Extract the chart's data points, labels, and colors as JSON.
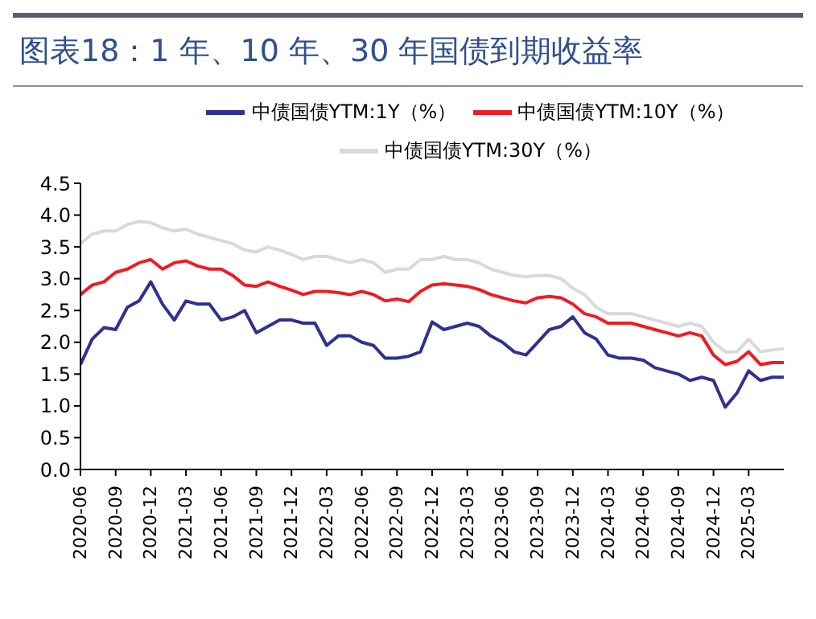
{
  "chart_data": {
    "type": "line",
    "title": "图表18：1 年、10 年、30 年国债到期收益率",
    "x": [
      "2020-06",
      "2020-07",
      "2020-08",
      "2020-09",
      "2020-10",
      "2020-11",
      "2020-12",
      "2021-01",
      "2021-02",
      "2021-03",
      "2021-04",
      "2021-05",
      "2021-06",
      "2021-07",
      "2021-08",
      "2021-09",
      "2021-10",
      "2021-11",
      "2021-12",
      "2022-01",
      "2022-02",
      "2022-03",
      "2022-04",
      "2022-05",
      "2022-06",
      "2022-07",
      "2022-08",
      "2022-09",
      "2022-10",
      "2022-11",
      "2022-12",
      "2023-01",
      "2023-02",
      "2023-03",
      "2023-04",
      "2023-05",
      "2023-06",
      "2023-07",
      "2023-08",
      "2023-09",
      "2023-10",
      "2023-11",
      "2023-12",
      "2024-01",
      "2024-02",
      "2024-03",
      "2024-04",
      "2024-05",
      "2024-06",
      "2024-07",
      "2024-08",
      "2024-09",
      "2024-10",
      "2024-11",
      "2024-12",
      "2025-01",
      "2025-02",
      "2025-03",
      "2025-04",
      "2025-05",
      "2025-06"
    ],
    "series": [
      {
        "name": "中债国债YTM:1Y（%）",
        "color": "#2e3192",
        "values": [
          1.65,
          2.05,
          2.23,
          2.2,
          2.55,
          2.65,
          2.95,
          2.6,
          2.35,
          2.65,
          2.6,
          2.6,
          2.35,
          2.4,
          2.5,
          2.15,
          2.25,
          2.35,
          2.35,
          2.3,
          2.3,
          1.95,
          2.1,
          2.1,
          2.0,
          1.95,
          1.75,
          1.75,
          1.78,
          1.85,
          2.32,
          2.2,
          2.25,
          2.3,
          2.25,
          2.1,
          2.0,
          1.85,
          1.8,
          2.0,
          2.2,
          2.25,
          2.4,
          2.15,
          2.05,
          1.8,
          1.75,
          1.75,
          1.72,
          1.6,
          1.55,
          1.5,
          1.4,
          1.45,
          1.4,
          0.98,
          1.2,
          1.55,
          1.4,
          1.45,
          1.45
        ]
      },
      {
        "name": "中债国债YTM:10Y（%）",
        "color": "#ee1c25",
        "values": [
          2.75,
          2.9,
          2.95,
          3.1,
          3.15,
          3.25,
          3.3,
          3.15,
          3.25,
          3.28,
          3.2,
          3.15,
          3.15,
          3.05,
          2.9,
          2.88,
          2.95,
          2.88,
          2.82,
          2.75,
          2.8,
          2.8,
          2.78,
          2.75,
          2.8,
          2.75,
          2.65,
          2.68,
          2.64,
          2.8,
          2.9,
          2.92,
          2.9,
          2.88,
          2.83,
          2.75,
          2.7,
          2.65,
          2.62,
          2.7,
          2.72,
          2.7,
          2.6,
          2.45,
          2.4,
          2.3,
          2.3,
          2.3,
          2.25,
          2.2,
          2.15,
          2.1,
          2.15,
          2.1,
          1.8,
          1.65,
          1.7,
          1.85,
          1.65,
          1.68,
          1.68
        ]
      },
      {
        "name": "中债国债YTM:30Y（%）",
        "color": "#d9d9d9",
        "values": [
          3.55,
          3.7,
          3.75,
          3.75,
          3.85,
          3.9,
          3.88,
          3.8,
          3.75,
          3.78,
          3.7,
          3.65,
          3.6,
          3.55,
          3.45,
          3.42,
          3.5,
          3.45,
          3.38,
          3.3,
          3.35,
          3.35,
          3.3,
          3.25,
          3.3,
          3.25,
          3.1,
          3.15,
          3.15,
          3.3,
          3.3,
          3.35,
          3.3,
          3.3,
          3.25,
          3.15,
          3.1,
          3.05,
          3.03,
          3.05,
          3.05,
          3.0,
          2.85,
          2.75,
          2.55,
          2.45,
          2.45,
          2.45,
          2.4,
          2.35,
          2.3,
          2.25,
          2.3,
          2.25,
          2.0,
          1.85,
          1.85,
          2.05,
          1.85,
          1.88,
          1.9
        ]
      }
    ],
    "xlim": [
      "2020-06",
      "2025-06"
    ],
    "xticks": [
      "2020-06",
      "2020-09",
      "2020-12",
      "2021-03",
      "2021-06",
      "2021-09",
      "2021-12",
      "2022-03",
      "2022-06",
      "2022-09",
      "2022-12",
      "2023-03",
      "2023-06",
      "2023-09",
      "2023-12",
      "2024-03",
      "2024-06",
      "2024-09",
      "2024-12",
      "2025-03"
    ],
    "ylim": [
      0,
      4.5
    ],
    "yticks": [
      {
        "value": 0,
        "label": "0.0"
      },
      {
        "value": 0.5,
        "label": "0.5"
      },
      {
        "value": 1,
        "label": "1.0"
      },
      {
        "value": 1.5,
        "label": "1.5"
      },
      {
        "value": 2,
        "label": "2.0"
      },
      {
        "value": 2.5,
        "label": "2.5"
      },
      {
        "value": 3,
        "label": "3.0"
      },
      {
        "value": 3.5,
        "label": "3.5"
      },
      {
        "value": 4,
        "label": "4.0"
      },
      {
        "value": 4.5,
        "label": "4.5"
      }
    ],
    "grid": false,
    "legend": "top",
    "marker": "none",
    "line_style": "solid"
  }
}
